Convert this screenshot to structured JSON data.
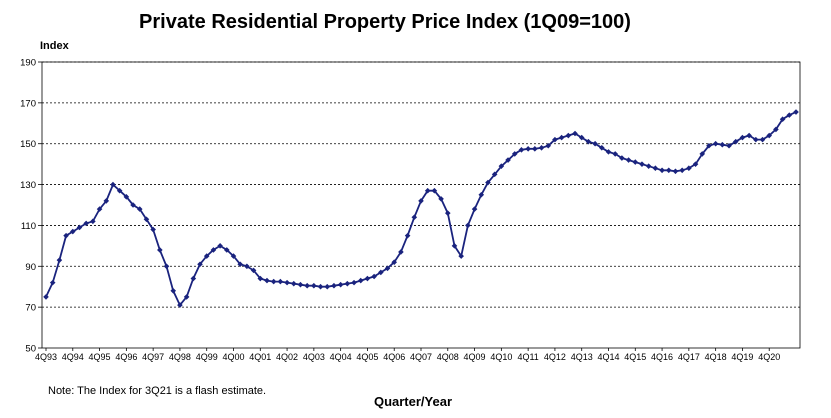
{
  "chart_data": {
    "type": "line",
    "title": "Private Residential Property Price Index (1Q09=100)",
    "ylabel": "Index",
    "xlabel": "Quarter/Year",
    "note": "Note: The Index for 3Q21 is a flash estimate.",
    "ylim": [
      50,
      190
    ],
    "yticks": [
      50,
      70,
      90,
      110,
      130,
      150,
      170,
      190
    ],
    "grid": "horizontal dashed",
    "line_color": "#1a237e",
    "marker": "diamond",
    "x_tick_labels": [
      "4Q93",
      "4Q94",
      "4Q95",
      "4Q96",
      "4Q97",
      "4Q98",
      "4Q99",
      "4Q00",
      "4Q01",
      "4Q02",
      "4Q03",
      "4Q04",
      "4Q05",
      "4Q06",
      "4Q07",
      "4Q08",
      "4Q09",
      "4Q10",
      "4Q11",
      "4Q12",
      "4Q13",
      "4Q14",
      "4Q15",
      "4Q16",
      "4Q17",
      "4Q18",
      "4Q19",
      "4Q20"
    ],
    "x_start": "4Q93",
    "x_end": "3Q21",
    "series": [
      {
        "name": "Private Residential Property Price Index",
        "values": [
          75,
          82,
          93,
          105,
          107,
          109,
          111,
          112,
          118,
          122,
          130,
          127,
          124,
          120,
          118,
          113,
          108,
          98,
          90,
          78,
          71,
          75,
          84,
          91,
          95,
          98,
          100,
          98,
          95,
          91,
          90,
          88,
          84,
          83,
          82.5,
          82.5,
          82,
          81.5,
          81,
          80.5,
          80.5,
          80,
          80,
          80.5,
          81,
          81.5,
          82,
          83,
          84,
          85,
          87,
          89,
          92,
          97,
          105,
          114,
          122,
          127,
          127,
          123,
          116,
          100,
          95,
          110,
          118,
          125,
          131,
          135,
          139,
          142,
          145,
          147,
          147.5,
          147.5,
          148,
          149,
          152,
          153,
          154,
          155,
          153,
          151,
          150,
          148,
          146,
          145,
          143,
          142,
          141,
          140,
          139,
          138,
          137,
          137,
          136.5,
          137,
          138,
          140,
          145,
          149,
          150,
          149.5,
          149,
          151,
          153,
          154,
          152,
          152,
          154,
          157,
          162,
          164,
          165.5
        ]
      }
    ]
  }
}
